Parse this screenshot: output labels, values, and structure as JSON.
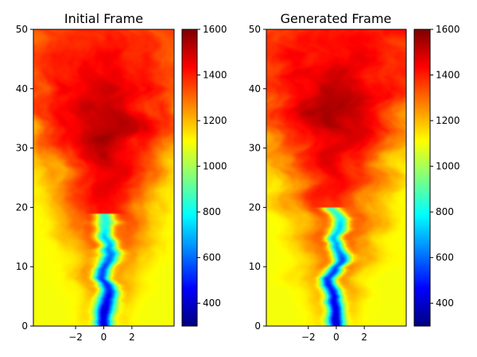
{
  "chart_data": [
    {
      "type": "heatmap",
      "title": "Initial Frame",
      "xlabel": "",
      "ylabel": "",
      "x_ticks": [
        -2,
        0,
        2
      ],
      "y_ticks": [
        0,
        10,
        20,
        30,
        40,
        50
      ],
      "xlim": [
        -5,
        5
      ],
      "ylim": [
        0,
        50
      ],
      "colorbar": {
        "label": "",
        "ticks": [
          400,
          600,
          800,
          1000,
          1200,
          1400,
          1600
        ],
        "range": [
          300,
          1600
        ],
        "colormap": "jet"
      },
      "field": {
        "ambient_value": 1100,
        "core_value": 350,
        "core_top": 19,
        "core_half_width": 0.7,
        "hot_value": 1600,
        "hot_center_y": 33,
        "plume_top_value": 1300
      }
    },
    {
      "type": "heatmap",
      "title": "Generated Frame",
      "xlabel": "",
      "ylabel": "",
      "x_ticks": [
        -2,
        0,
        2
      ],
      "y_ticks": [
        0,
        10,
        20,
        30,
        40,
        50
      ],
      "xlim": [
        -5,
        5
      ],
      "ylim": [
        0,
        50
      ],
      "colorbar": {
        "label": "",
        "ticks": [
          400,
          600,
          800,
          1000,
          1200,
          1400,
          1600
        ],
        "range": [
          300,
          1600
        ],
        "colormap": "jet"
      },
      "field": {
        "ambient_value": 1100,
        "core_value": 350,
        "core_top": 20,
        "core_half_width": 0.6,
        "hot_value": 1600,
        "hot_center_y": 36,
        "plume_top_value": 1350
      }
    }
  ]
}
